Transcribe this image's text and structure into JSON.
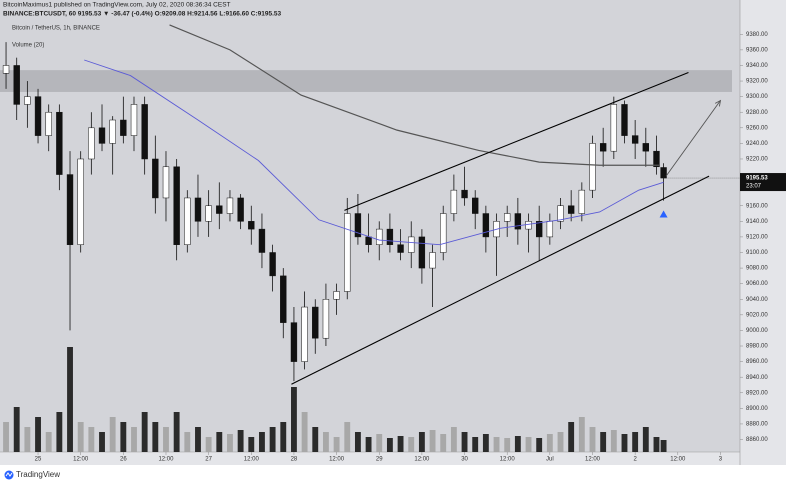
{
  "header": {
    "published": "BitcoinMaximus1 published on TradingView.com, July 02, 2020 08:36:34 CEST",
    "symbol": "BINANCE:BTCUSDT, 60  9195.53 ▼ -36.47 (-0.4%)  O:9209.08  H:9214.56  L:9166.60  C:9195.53"
  },
  "footer": {
    "brand": "TradingView"
  },
  "chart_data": {
    "type": "candlestick",
    "legend": [
      "Bitcoin / TetherUS, 1h, BINANCE",
      "Volume (20)"
    ],
    "x": [
      -9,
      -6,
      -3,
      0,
      3,
      6,
      9,
      12,
      15,
      18,
      21,
      24,
      27,
      30,
      33,
      36,
      39,
      42,
      45,
      48,
      51,
      54,
      57,
      60,
      63,
      66,
      69,
      72,
      75,
      78,
      81,
      84,
      87,
      90,
      93,
      96,
      99,
      102,
      105,
      108,
      111,
      114,
      117,
      120,
      123,
      126,
      129,
      132,
      135,
      138,
      141,
      144,
      147,
      150,
      153,
      156,
      159,
      162,
      165,
      168,
      171,
      174,
      176
    ],
    "open": [
      9330,
      9340,
      9290,
      9300,
      9250,
      9280,
      9200,
      9110,
      9220,
      9260,
      9240,
      9270,
      9250,
      9290,
      9220,
      9170,
      9210,
      9110,
      9170,
      9140,
      9160,
      9150,
      9170,
      9140,
      9130,
      9100,
      9070,
      9010,
      8960,
      9030,
      8990,
      9040,
      9050,
      9150,
      9120,
      9110,
      9130,
      9110,
      9100,
      9120,
      9080,
      9100,
      9150,
      9180,
      9170,
      9150,
      9120,
      9140,
      9150,
      9130,
      9140,
      9120,
      9140,
      9160,
      9150,
      9180,
      9240,
      9230,
      9290,
      9250,
      9240,
      9230,
      9209.08
    ],
    "high": [
      9370,
      9350,
      9320,
      9310,
      9290,
      9290,
      9230,
      9230,
      9280,
      9290,
      9275,
      9300,
      9300,
      9300,
      9250,
      9230,
      9220,
      9180,
      9200,
      9180,
      9190,
      9180,
      9175,
      9160,
      9150,
      9110,
      9080,
      9030,
      9050,
      9040,
      9060,
      9060,
      9170,
      9175,
      9150,
      9140,
      9150,
      9130,
      9140,
      9130,
      9110,
      9160,
      9200,
      9210,
      9180,
      9160,
      9150,
      9160,
      9170,
      9150,
      9160,
      9150,
      9170,
      9180,
      9190,
      9250,
      9260,
      9300,
      9295,
      9270,
      9260,
      9250,
      9214.56
    ],
    "low": [
      9310,
      9270,
      9260,
      9240,
      9230,
      9180,
      9000,
      9100,
      9200,
      9230,
      9200,
      9240,
      9230,
      9200,
      9150,
      9140,
      9090,
      9100,
      9120,
      9120,
      9130,
      9140,
      9130,
      9110,
      9080,
      9050,
      8990,
      8935,
      8950,
      8970,
      8980,
      9020,
      9040,
      9110,
      9100,
      9090,
      9100,
      9090,
      9080,
      9060,
      9030,
      9090,
      9140,
      9160,
      9130,
      9100,
      9070,
      9120,
      9110,
      9100,
      9090,
      9110,
      9130,
      9140,
      9140,
      9170,
      9210,
      9220,
      9240,
      9220,
      9210,
      9200,
      9166.6
    ],
    "close": [
      9340,
      9290,
      9300,
      9250,
      9280,
      9200,
      9110,
      9220,
      9260,
      9240,
      9270,
      9250,
      9290,
      9220,
      9170,
      9210,
      9110,
      9170,
      9140,
      9160,
      9150,
      9170,
      9140,
      9130,
      9100,
      9070,
      9010,
      8960,
      9030,
      8990,
      9040,
      9050,
      9150,
      9120,
      9110,
      9130,
      9110,
      9100,
      9120,
      9080,
      9100,
      9150,
      9180,
      9170,
      9150,
      9120,
      9140,
      9150,
      9130,
      9140,
      9120,
      9140,
      9160,
      9150,
      9180,
      9240,
      9230,
      9290,
      9250,
      9240,
      9230,
      9210,
      9195.53
    ],
    "volume": [
      30,
      45,
      25,
      35,
      20,
      40,
      105,
      30,
      25,
      20,
      35,
      30,
      25,
      40,
      30,
      25,
      40,
      20,
      25,
      15,
      20,
      18,
      22,
      15,
      20,
      25,
      30,
      65,
      40,
      25,
      20,
      15,
      30,
      20,
      15,
      18,
      14,
      16,
      15,
      20,
      22,
      18,
      25,
      20,
      15,
      18,
      15,
      14,
      16,
      15,
      14,
      18,
      20,
      30,
      35,
      25,
      20,
      22,
      18,
      20,
      25,
      15,
      12
    ],
    "up_color": "#ffffff",
    "down_color": "#111111",
    "volume_up_color": "#a8a8a8",
    "volume_down_color": "#2b2b2b",
    "series": [
      {
        "color": "#5b5bd6",
        "x": [
          13,
          26,
          45,
          62,
          79,
          96,
          113,
          130,
          147,
          158,
          169,
          176
        ],
        "values": [
          9347,
          9327,
          9270,
          9218,
          9142,
          9116,
          9110,
          9131,
          9142,
          9152,
          9180,
          9190
        ]
      },
      {
        "color": "#555555",
        "x": [
          37,
          54,
          74,
          101,
          124,
          141,
          158,
          175
        ],
        "values": [
          9392,
          9360,
          9302,
          9257,
          9231,
          9216,
          9212,
          9212
        ]
      }
    ],
    "annotations": {
      "zone": [
        9306,
        9334
      ],
      "lines": [
        {
          "x": [
            86.2,
            183
          ],
          "y": [
            9154,
            9331
          ]
        },
        {
          "x": [
            71.3,
            188.8
          ],
          "y": [
            8931,
            9198
          ]
        }
      ],
      "arrow": {
        "x": [
          176.7,
          192
        ],
        "y": [
          9198,
          9295
        ]
      },
      "marker": {
        "x": 176,
        "y": 9150
      }
    },
    "last_price": 9195.53,
    "countdown": "23:07",
    "xlim": [
      -10.7,
      197.5
    ],
    "ylim": [
      8844,
      9424
    ],
    "xticks": [
      {
        "value": 0,
        "label": "25"
      },
      {
        "value": 12,
        "label": "12:00"
      },
      {
        "value": 24,
        "label": "26"
      },
      {
        "value": 36,
        "label": "12:00"
      },
      {
        "value": 48,
        "label": "27"
      },
      {
        "value": 60,
        "label": "12:00"
      },
      {
        "value": 72,
        "label": "28"
      },
      {
        "value": 84,
        "label": "12:00"
      },
      {
        "value": 96,
        "label": "29"
      },
      {
        "value": 108,
        "label": "12:00"
      },
      {
        "value": 120,
        "label": "30"
      },
      {
        "value": 132,
        "label": "12:00"
      },
      {
        "value": 144,
        "label": "Jul"
      },
      {
        "value": 156,
        "label": "12:00"
      },
      {
        "value": 168,
        "label": "2"
      },
      {
        "value": 180,
        "label": "12:00"
      },
      {
        "value": 192,
        "label": "3"
      }
    ],
    "yticks": [
      {
        "value": 8860,
        "label": "8860.00"
      },
      {
        "value": 8880,
        "label": "8880.00"
      },
      {
        "value": 8900,
        "label": "8900.00"
      },
      {
        "value": 8920,
        "label": "8920.00"
      },
      {
        "value": 8940,
        "label": "8940.00"
      },
      {
        "value": 8960,
        "label": "8960.00"
      },
      {
        "value": 8980,
        "label": "8980.00"
      },
      {
        "value": 9000,
        "label": "9000.00"
      },
      {
        "value": 9020,
        "label": "9020.00"
      },
      {
        "value": 9040,
        "label": "9040.00"
      },
      {
        "value": 9060,
        "label": "9060.00"
      },
      {
        "value": 9080,
        "label": "9080.00"
      },
      {
        "value": 9100,
        "label": "9100.00"
      },
      {
        "value": 9120,
        "label": "9120.00"
      },
      {
        "value": 9140,
        "label": "9140.00"
      },
      {
        "value": 9160,
        "label": "9160.00"
      },
      {
        "value": 9220,
        "label": "9220.00"
      },
      {
        "value": 9240,
        "label": "9240.00"
      },
      {
        "value": 9260,
        "label": "9260.00"
      },
      {
        "value": 9280,
        "label": "9280.00"
      },
      {
        "value": 9300,
        "label": "9300.00"
      },
      {
        "value": 9320,
        "label": "9320.00"
      },
      {
        "value": 9340,
        "label": "9340.00"
      },
      {
        "value": 9360,
        "label": "9360.00"
      },
      {
        "value": 9380,
        "label": "9380.00"
      }
    ]
  }
}
